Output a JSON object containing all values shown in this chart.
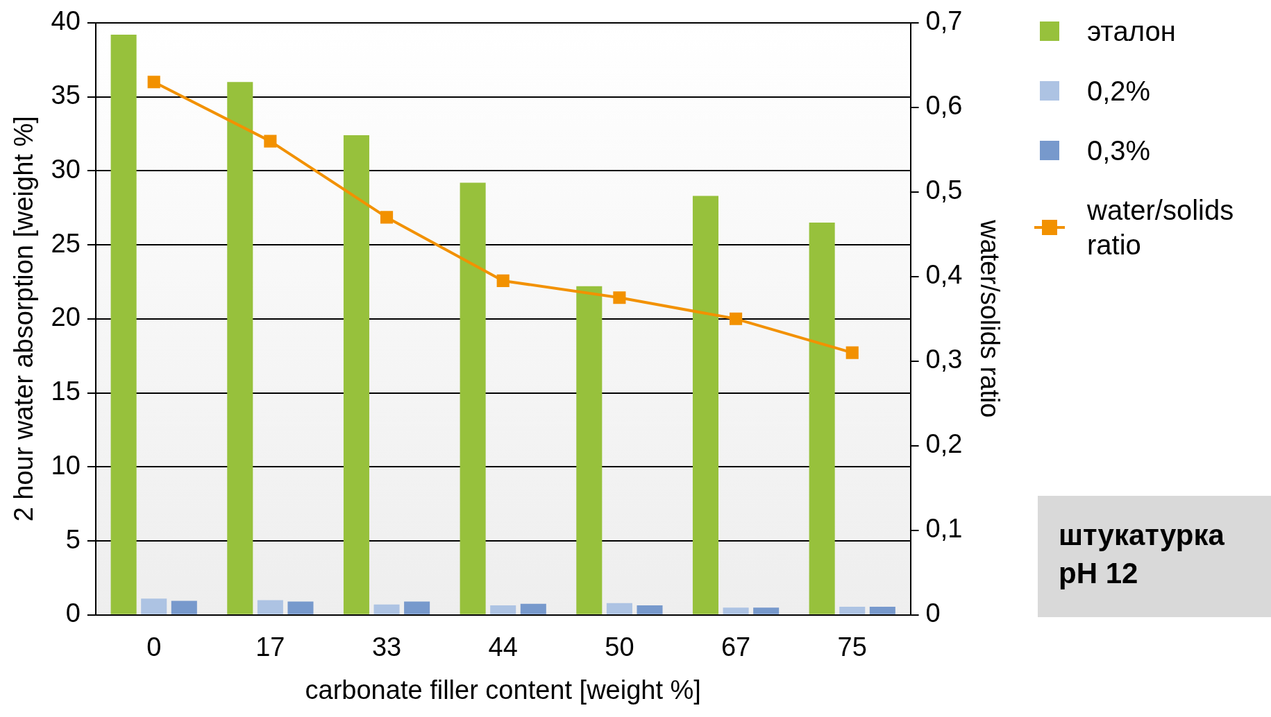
{
  "chart_data": {
    "type": "bar",
    "xlabel": "carbonate filler content [weight %]",
    "ylabel": "2 hour water absorption [weight %]",
    "y2label": "water/solids ratio",
    "categories": [
      "0",
      "17",
      "33",
      "44",
      "50",
      "67",
      "75"
    ],
    "series": [
      {
        "name": "эталон",
        "color": "#97c13c",
        "values": [
          39.2,
          36.0,
          32.4,
          29.2,
          22.2,
          28.3,
          26.5
        ]
      },
      {
        "name": "0,2%",
        "color": "#adc3e3",
        "values": [
          1.1,
          1.0,
          0.7,
          0.65,
          0.8,
          0.5,
          0.55
        ]
      },
      {
        "name": "0,3%",
        "color": "#7799cc",
        "values": [
          0.95,
          0.9,
          0.9,
          0.75,
          0.65,
          0.5,
          0.55
        ]
      },
      {
        "name": "water/solids\nratio",
        "type": "line",
        "axis": "y2",
        "color": "#f29100",
        "marker": "square",
        "values": [
          0.63,
          0.56,
          0.47,
          0.395,
          0.375,
          0.35,
          0.31
        ]
      }
    ],
    "ylim": [
      0,
      40
    ],
    "yticks": [
      0,
      5,
      10,
      15,
      20,
      25,
      30,
      35,
      40
    ],
    "y2lim": [
      0,
      0.7
    ],
    "y2ticks": [
      {
        "value": 0,
        "label": "0"
      },
      {
        "value": 0.1,
        "label": "0,1"
      },
      {
        "value": 0.2,
        "label": "0,2"
      },
      {
        "value": 0.3,
        "label": "0,3"
      },
      {
        "value": 0.4,
        "label": "0,4"
      },
      {
        "value": 0.5,
        "label": "0,5"
      },
      {
        "value": 0.6,
        "label": "0,6"
      },
      {
        "value": 0.7,
        "label": "0,7"
      }
    ],
    "grid": "y",
    "legend": "right",
    "annotations": [
      "штукатурка\npH 12"
    ]
  }
}
